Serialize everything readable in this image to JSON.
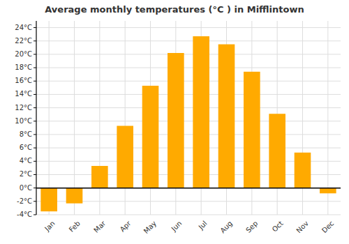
{
  "chart_data": {
    "type": "bar",
    "title": "Average monthly temperatures (°C ) in Mifflintown",
    "categories": [
      "Jan",
      "Feb",
      "Mar",
      "Apr",
      "May",
      "Jun",
      "Jul",
      "Aug",
      "Sep",
      "Oct",
      "Nov",
      "Dec"
    ],
    "values": [
      -3.5,
      -2.3,
      3.3,
      9.3,
      15.3,
      20.2,
      22.7,
      21.5,
      17.4,
      11.1,
      5.3,
      -0.8
    ],
    "color": "#FFAA00",
    "ylim": [
      -4,
      25
    ],
    "yticks": [
      {
        "value": -4,
        "label": "-4°C"
      },
      {
        "value": -2,
        "label": "-2°C"
      },
      {
        "value": 0,
        "label": "0°C"
      },
      {
        "value": 2,
        "label": "2°C"
      },
      {
        "value": 4,
        "label": "4°C"
      },
      {
        "value": 6,
        "label": "6°C"
      },
      {
        "value": 8,
        "label": "8°C"
      },
      {
        "value": 10,
        "label": "10°C"
      },
      {
        "value": 12,
        "label": "12°C"
      },
      {
        "value": 14,
        "label": "14°C"
      },
      {
        "value": 16,
        "label": "16°C"
      },
      {
        "value": 18,
        "label": "18°C"
      },
      {
        "value": 20,
        "label": "20°C"
      },
      {
        "value": 22,
        "label": "22°C"
      },
      {
        "value": 24,
        "label": "24°C"
      }
    ],
    "grid": true
  }
}
